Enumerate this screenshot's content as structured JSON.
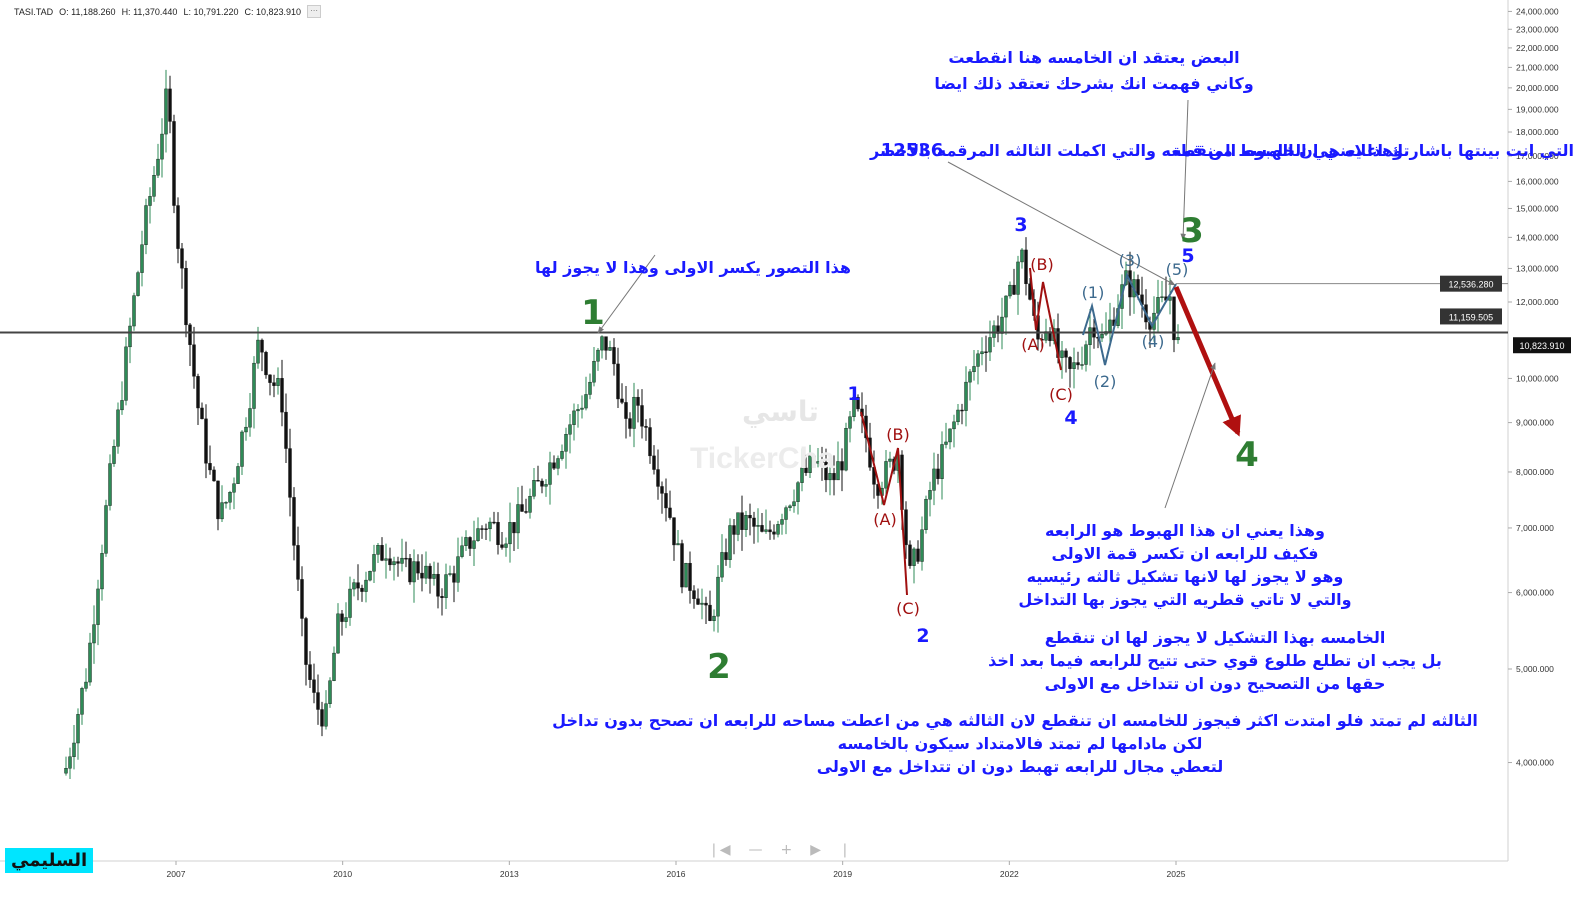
{
  "header": {
    "symbol": "TASI.TAD",
    "open": "O: 11,188.260",
    "high": "H: 11,370.440",
    "low": "L: 10,791.220",
    "close": "C: 10,823.910",
    "more": "···"
  },
  "watermark": {
    "arabic": "تاسي",
    "brand": "TickerCha"
  },
  "author": "السليمي",
  "nav": {
    "left": "❘◀",
    "minus": "—",
    "plus": "+",
    "right": "▶",
    "end": "❘"
  },
  "chart_data": {
    "type": "candlestick",
    "y_scale": "log",
    "ylim": [
      3500,
      24500
    ],
    "xlim": [
      2005.0,
      2025.0
    ],
    "x_ticks": [
      "2007",
      "2010",
      "2013",
      "2016",
      "2019",
      "2022",
      "2025"
    ],
    "y_ticks": [
      "24,000.000",
      "23,000.000",
      "22,000.000",
      "21,000.000",
      "20,000.000",
      "19,000.000",
      "18,000.000",
      "17,000.000",
      "16,000.000",
      "15,000.000",
      "14,000.000",
      "13,000.000",
      "12,000.000",
      "10,000.000",
      "9,000.000",
      "8,000.000",
      "7,000.000",
      "6,000.000",
      "5,000.000",
      "4,000.000"
    ],
    "price_labels": {
      "p12536": "12,536.280",
      "p11159": "11,159.505",
      "last": "10,823.910"
    },
    "close_path": [
      [
        2005.0,
        3900
      ],
      [
        2005.4,
        5000
      ],
      [
        2005.8,
        7800
      ],
      [
        2006.1,
        10500
      ],
      [
        2006.4,
        14000
      ],
      [
        2006.7,
        17500
      ],
      [
        2006.85,
        19800
      ],
      [
        2007.0,
        14500
      ],
      [
        2007.2,
        11500
      ],
      [
        2007.4,
        9300
      ],
      [
        2007.6,
        8000
      ],
      [
        2007.8,
        7200
      ],
      [
        2008.0,
        7700
      ],
      [
        2008.3,
        9400
      ],
      [
        2008.5,
        11000
      ],
      [
        2008.7,
        10000
      ],
      [
        2008.9,
        9600
      ],
      [
        2009.1,
        7000
      ],
      [
        2009.3,
        5200
      ],
      [
        2009.5,
        4600
      ],
      [
        2009.7,
        4450
      ],
      [
        2009.9,
        5500
      ],
      [
        2010.2,
        6000
      ],
      [
        2010.5,
        6400
      ],
      [
        2010.8,
        6700
      ],
      [
        2011.1,
        6300
      ],
      [
        2011.4,
        6400
      ],
      [
        2011.7,
        6000
      ],
      [
        2012.0,
        6300
      ],
      [
        2012.3,
        6800
      ],
      [
        2012.6,
        7100
      ],
      [
        2012.9,
        6900
      ],
      [
        2013.2,
        7200
      ],
      [
        2013.5,
        7700
      ],
      [
        2013.8,
        8300
      ],
      [
        2014.1,
        9000
      ],
      [
        2014.4,
        9700
      ],
      [
        2014.7,
        11000
      ],
      [
        2014.9,
        10300
      ],
      [
        2015.1,
        8800
      ],
      [
        2015.3,
        9500
      ],
      [
        2015.6,
        8300
      ],
      [
        2015.9,
        7200
      ],
      [
        2016.1,
        6300
      ],
      [
        2016.4,
        6000
      ],
      [
        2016.6,
        5500
      ],
      [
        2016.8,
        6300
      ],
      [
        2017.0,
        7000
      ],
      [
        2017.3,
        7100
      ],
      [
        2017.6,
        6800
      ],
      [
        2017.9,
        7300
      ],
      [
        2018.2,
        7800
      ],
      [
        2018.5,
        8200
      ],
      [
        2018.8,
        7800
      ],
      [
        2019.0,
        8300
      ],
      [
        2019.2,
        9300
      ],
      [
        2019.4,
        8800
      ],
      [
        2019.6,
        7800
      ],
      [
        2019.8,
        8000
      ],
      [
        2020.0,
        8400
      ],
      [
        2020.2,
        6200
      ],
      [
        2020.4,
        6800
      ],
      [
        2020.6,
        7800
      ],
      [
        2020.9,
        8600
      ],
      [
        2021.2,
        9700
      ],
      [
        2021.5,
        10800
      ],
      [
        2021.8,
        11400
      ],
      [
        2022.0,
        12000
      ],
      [
        2022.2,
        13600
      ],
      [
        2022.35,
        12300
      ],
      [
        2022.5,
        10900
      ],
      [
        2022.7,
        11500
      ],
      [
        2022.9,
        10400
      ],
      [
        2023.1,
        10100
      ],
      [
        2023.3,
        10600
      ],
      [
        2023.5,
        11500
      ],
      [
        2023.7,
        10900
      ],
      [
        2023.9,
        11800
      ],
      [
        2024.1,
        12600
      ],
      [
        2024.3,
        12300
      ],
      [
        2024.5,
        11600
      ],
      [
        2024.7,
        11800
      ],
      [
        2024.9,
        12200
      ],
      [
        2025.0,
        10823.91
      ]
    ],
    "annotations": {
      "intro_arrow_text": "هذا التصور يكسر الاولى وهذا لا يجوز لها",
      "top_text_1": "البعض يعتقد ان الخامسه هنا انقطعت",
      "top_text_2": "وكاني فهمت انك بشرحك تعتقد ذلك ايضا",
      "mid_text_pre": "وهذا يعني ان الهبوط من قمة",
      "mid_text_num": "12536",
      "mid_text_post": "التي انت بينتها باشارتك  اعلاه هي الخامسه المنقطعه والتي اكملت الثالثه المرقمه بالاخضر",
      "right_block": [
        "وهذا يعني ان هذا الهبوط هو الرابعه",
        "فكيف للرابعه ان تكسر قمة الاولى",
        "وهو لا يجوز لها لانها تشكيل ثالثه رئيسيه",
        "والتي لا تاتي قطريه التي يجوز بها التداخل"
      ],
      "mid_block": [
        "الخامسه بهذا التشكيل لا يجوز لها ان تنقطع",
        "بل يجب ان تطلع طلوع قوي حتى تتيح للرابعه فيما بعد اخذ",
        "حقها من التصحيح دون ان تتداخل مع الاولى"
      ],
      "bottom_block": [
        "الثالثه لم تمتد فلو امتدت اكثر فيجوز للخامسه ان تنقطع لان الثالثه هي من اعطت مساحه للرابعه ان تصحح بدون تداخل",
        "لكن مادامها لم تمتد فالامتداد سيكون بالخامسه",
        "لتعطي مجال للرابعه تهبط دون ان تتداخل مع الاولى"
      ],
      "wave_labels": {
        "g1": "1",
        "g2": "2",
        "g3": "3",
        "g4": "4",
        "b1": "1",
        "b2": "2",
        "b3": "3",
        "b4": "4",
        "b5": "5",
        "rA1": "(A)",
        "rB1": "(B)",
        "rC1": "(C)",
        "rA2": "(A)",
        "rB2": "(B)",
        "rC2": "(C)",
        "s1": "(1)",
        "s2": "(2)",
        "s3": "(3)",
        "s4": "(4)",
        "s5": "(5)"
      }
    },
    "colors": {
      "up": "#2e8b57",
      "down": "#111111",
      "green_label": "#2e7d32",
      "blue_text": "#1a1aff",
      "dark_red": "#a01010",
      "slate": "#3d6a8e",
      "line": "#555555"
    }
  }
}
